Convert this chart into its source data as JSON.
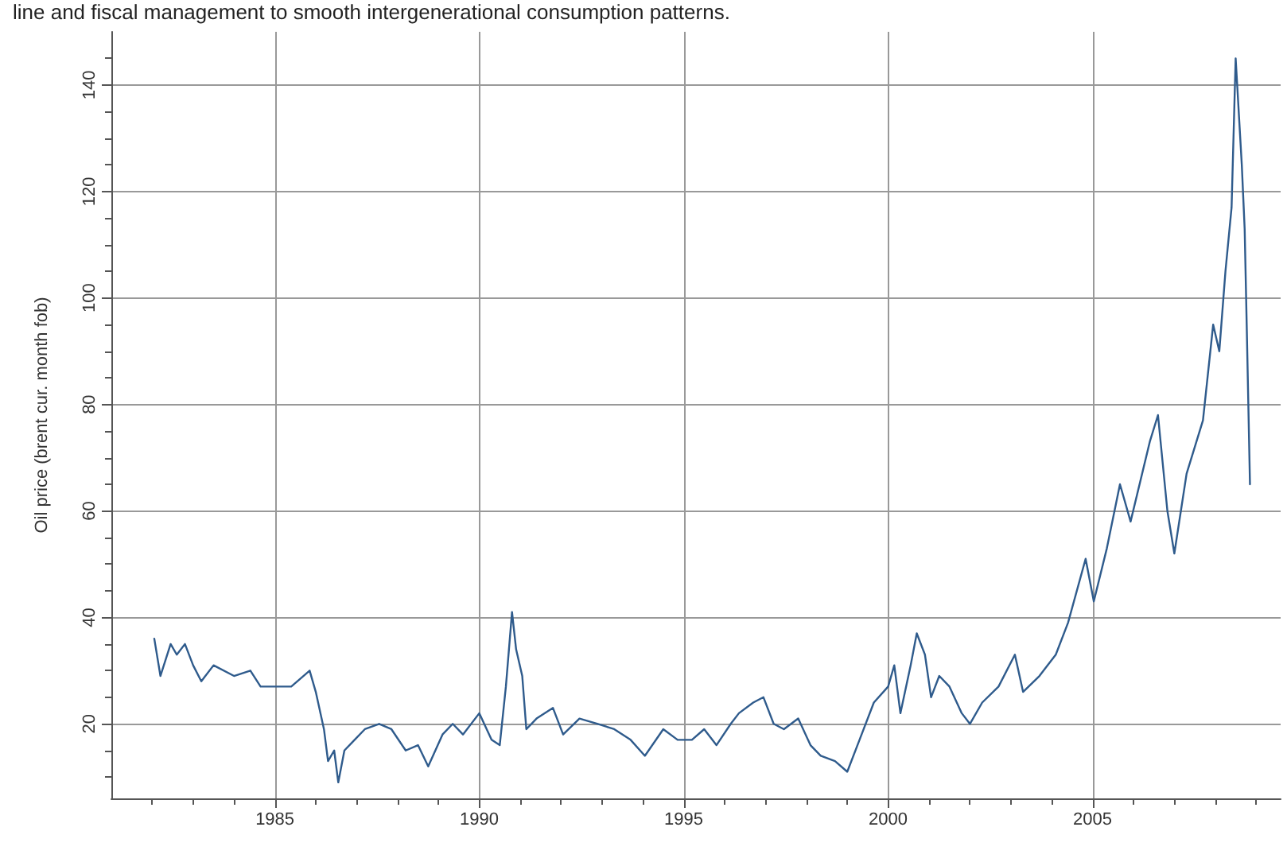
{
  "chart_data": {
    "type": "line",
    "ylabel": "Oil price (brent cur. month fob)",
    "annotations": [
      "line and fiscal management to smooth intergenerational consumption patterns."
    ],
    "x": [
      1982.05,
      1982.2,
      1982.45,
      1982.6,
      1982.8,
      1983.0,
      1983.2,
      1983.5,
      1984.0,
      1984.4,
      1984.65,
      1985.0,
      1985.4,
      1985.85,
      1986.0,
      1986.2,
      1986.3,
      1986.45,
      1986.55,
      1986.7,
      1986.95,
      1987.2,
      1987.55,
      1987.85,
      1988.2,
      1988.5,
      1988.75,
      1989.1,
      1989.35,
      1989.6,
      1990.0,
      1990.3,
      1990.5,
      1990.65,
      1990.8,
      1990.9,
      1991.05,
      1991.15,
      1991.4,
      1991.8,
      1992.05,
      1992.45,
      1992.9,
      1993.3,
      1993.7,
      1994.05,
      1994.5,
      1994.85,
      1995.2,
      1995.5,
      1995.8,
      1996.15,
      1996.35,
      1996.7,
      1996.95,
      1997.2,
      1997.45,
      1997.8,
      1998.1,
      1998.35,
      1998.7,
      1999.0,
      1999.3,
      1999.65,
      2000.0,
      2000.15,
      2000.3,
      2000.55,
      2000.7,
      2000.9,
      2001.05,
      2001.25,
      2001.5,
      2001.8,
      2002.0,
      2002.3,
      2002.7,
      2003.1,
      2003.3,
      2003.7,
      2004.1,
      2004.4,
      2004.83,
      2005.03,
      2005.35,
      2005.67,
      2005.93,
      2006.4,
      2006.6,
      2006.83,
      2007.0,
      2007.3,
      2007.7,
      2007.95,
      2008.1,
      2008.25,
      2008.4,
      2008.5,
      2008.65,
      2008.72,
      2008.77,
      2008.85
    ],
    "series": [
      {
        "color": "#2f5b8c",
        "values": [
          36,
          29,
          35,
          33,
          35,
          31,
          28,
          31,
          29,
          30,
          27,
          27,
          27,
          30,
          26,
          19,
          13,
          15,
          9,
          15,
          17,
          19,
          20,
          19,
          15,
          16,
          12,
          18,
          20,
          18,
          22,
          17,
          16,
          27,
          41,
          34,
          29,
          19,
          21,
          23,
          18,
          21,
          20,
          19,
          17,
          14,
          19,
          17,
          17,
          19,
          16,
          20,
          22,
          24,
          25,
          20,
          19,
          21,
          16,
          14,
          13,
          11,
          17,
          24,
          27,
          31,
          22,
          31,
          37,
          33,
          25,
          29,
          27,
          22,
          20,
          24,
          27,
          33,
          26,
          29,
          33,
          39,
          51,
          43,
          53,
          65,
          58,
          73,
          78,
          60,
          52,
          67,
          77,
          95,
          90,
          105,
          117,
          145,
          125,
          113,
          95,
          65
        ]
      }
    ],
    "xlim": [
      1981,
      2009.6
    ],
    "xticks": [
      {
        "value": 1982,
        "label": null
      },
      {
        "value": 1983,
        "label": null
      },
      {
        "value": 1984,
        "label": null
      },
      1985,
      {
        "value": 1986,
        "label": null
      },
      {
        "value": 1987,
        "label": null
      },
      {
        "value": 1988,
        "label": null
      },
      {
        "value": 1989,
        "label": null
      },
      1990,
      {
        "value": 1991,
        "label": null
      },
      {
        "value": 1992,
        "label": null
      },
      {
        "value": 1993,
        "label": null
      },
      {
        "value": 1994,
        "label": null
      },
      1995,
      {
        "value": 1996,
        "label": null
      },
      {
        "value": 1997,
        "label": null
      },
      {
        "value": 1998,
        "label": null
      },
      {
        "value": 1999,
        "label": null
      },
      2000,
      {
        "value": 2001,
        "label": null
      },
      {
        "value": 2002,
        "label": null
      },
      {
        "value": 2003,
        "label": null
      },
      {
        "value": 2004,
        "label": null
      },
      2005,
      {
        "value": 2006,
        "label": null
      },
      {
        "value": 2007,
        "label": null
      },
      {
        "value": 2008,
        "label": null
      },
      {
        "value": 2009,
        "label": null
      }
    ],
    "ylim": [
      6,
      150
    ],
    "yticks": [
      {
        "value": 10,
        "label": null
      },
      {
        "value": 15,
        "label": null
      },
      20,
      {
        "value": 25,
        "label": null
      },
      {
        "value": 30,
        "label": null
      },
      {
        "value": 35,
        "label": null
      },
      40,
      {
        "value": 45,
        "label": null
      },
      {
        "value": 50,
        "label": null
      },
      {
        "value": 55,
        "label": null
      },
      60,
      {
        "value": 65,
        "label": null
      },
      {
        "value": 70,
        "label": null
      },
      {
        "value": 75,
        "label": null
      },
      80,
      {
        "value": 85,
        "label": null
      },
      {
        "value": 90,
        "label": null
      },
      {
        "value": 95,
        "label": null
      },
      100,
      {
        "value": 105,
        "label": null
      },
      {
        "value": 110,
        "label": null
      },
      {
        "value": 115,
        "label": null
      },
      120,
      {
        "value": 125,
        "label": null
      },
      {
        "value": 130,
        "label": null
      },
      {
        "value": 135,
        "label": null
      },
      140,
      {
        "value": 145,
        "label": null
      }
    ],
    "grid": true,
    "marker": "none",
    "line_style": "solid"
  }
}
